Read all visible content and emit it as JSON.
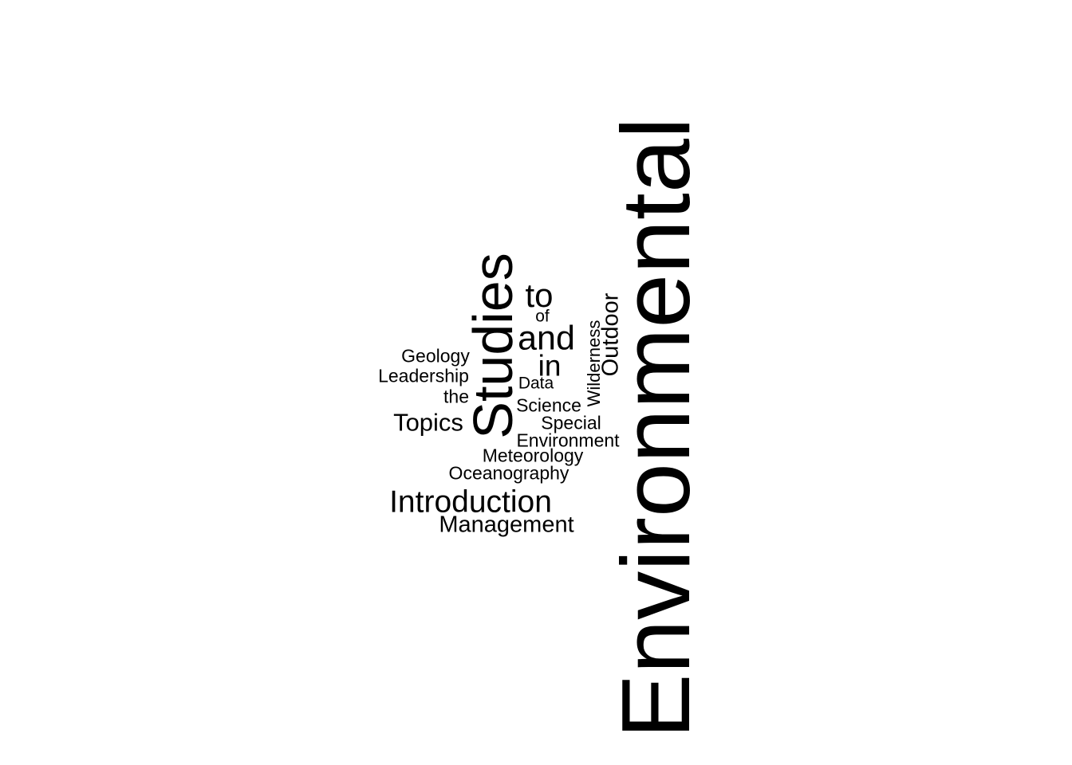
{
  "word_cloud": {
    "words": [
      {
        "id": "environmental",
        "text": "Environmental",
        "orientation": "vertical"
      },
      {
        "id": "studies",
        "text": "Studies",
        "orientation": "vertical"
      },
      {
        "id": "outdoor",
        "text": "Outdoor",
        "orientation": "vertical"
      },
      {
        "id": "wilderness",
        "text": "Wilderness",
        "orientation": "vertical"
      },
      {
        "id": "to",
        "text": "to",
        "orientation": "horizontal"
      },
      {
        "id": "of",
        "text": "of",
        "orientation": "horizontal"
      },
      {
        "id": "and",
        "text": "and",
        "orientation": "horizontal"
      },
      {
        "id": "in",
        "text": "in",
        "orientation": "horizontal"
      },
      {
        "id": "data",
        "text": "Data",
        "orientation": "horizontal"
      },
      {
        "id": "science",
        "text": "Science",
        "orientation": "horizontal"
      },
      {
        "id": "special",
        "text": "Special",
        "orientation": "horizontal"
      },
      {
        "id": "environment",
        "text": "Environment",
        "orientation": "horizontal"
      },
      {
        "id": "meteorology",
        "text": "Meteorology",
        "orientation": "horizontal"
      },
      {
        "id": "oceanography",
        "text": "Oceanography",
        "orientation": "horizontal"
      },
      {
        "id": "introduction",
        "text": "Introduction",
        "orientation": "horizontal"
      },
      {
        "id": "management",
        "text": "Management",
        "orientation": "horizontal"
      },
      {
        "id": "geology",
        "text": "Geology",
        "orientation": "horizontal"
      },
      {
        "id": "leadership",
        "text": "Leadership",
        "orientation": "horizontal"
      },
      {
        "id": "the",
        "text": "the",
        "orientation": "horizontal"
      },
      {
        "id": "topics",
        "text": "Topics",
        "orientation": "horizontal"
      }
    ],
    "text_color": "#000000",
    "background_color": "#ffffff"
  }
}
